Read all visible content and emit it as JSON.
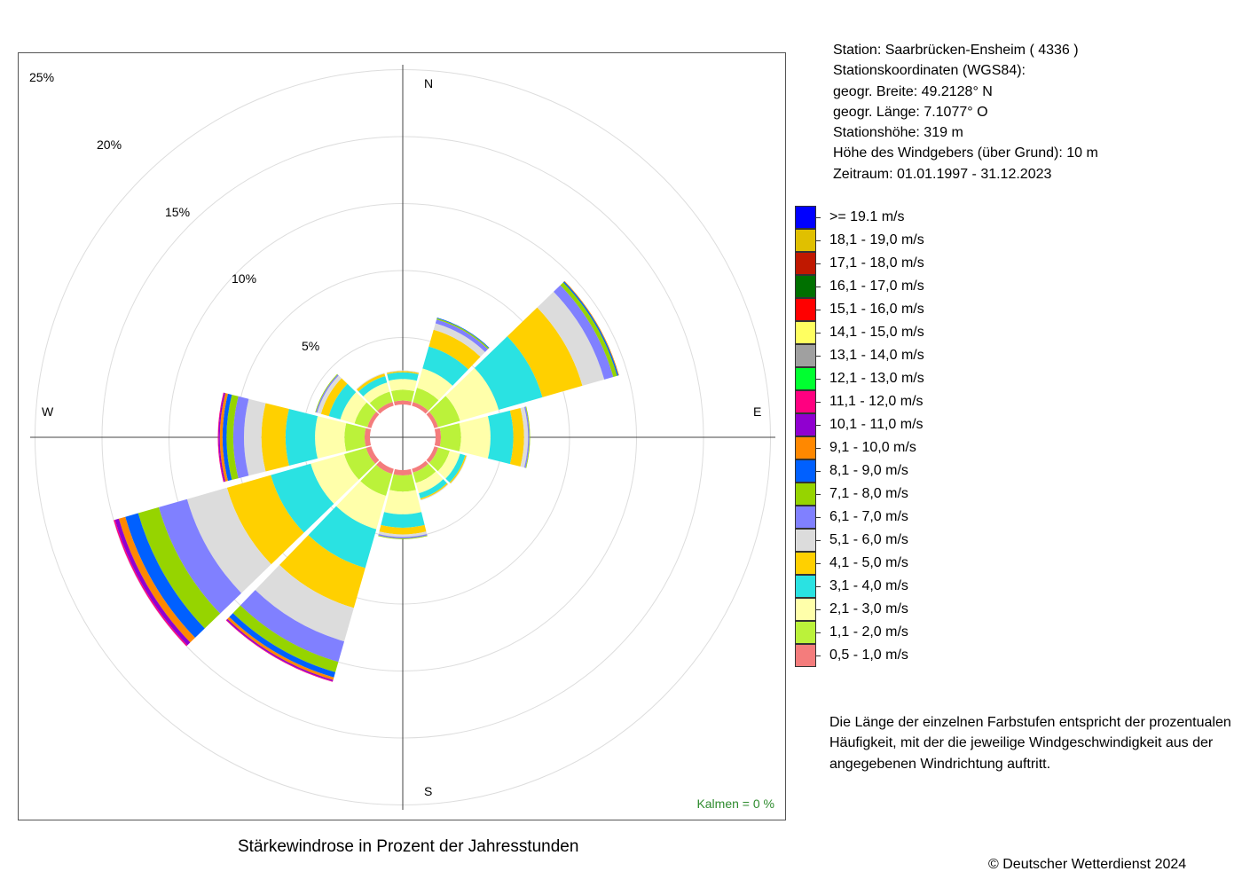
{
  "station": {
    "name_line": "Station:  Saarbrücken-Ensheim  ( 4336 )",
    "coords_heading": "Stationskoordinaten (WGS84):",
    "lat_line": "geogr. Breite: 49.2128° N",
    "lon_line": "geogr. Länge:   7.1077° O",
    "height_line": "Stationshöhe: 319 m",
    "anemometer_line": "Höhe des Windgebers (über Grund): 10 m",
    "period_line": "Zeitraum: 01.01.1997 - 31.12.2023"
  },
  "note": "Die Länge der einzelnen Farbstufen entspricht der prozentualen Häufigkeit, mit der die jeweilige Windgeschwindigkeit aus der angegebenen Windrichtung auftritt.",
  "copyright": "© Deutscher Wetterdienst  2024",
  "chart_data": {
    "type": "polar-bar",
    "title": "Stärkewindrose in Prozent der Jahresstunden",
    "calm_label": "Kalmen  =  0 %",
    "directions": [
      "N",
      "E",
      "S",
      "W"
    ],
    "sector_angles_deg": [
      0,
      30,
      60,
      90,
      120,
      150,
      180,
      210,
      240,
      270,
      300,
      330
    ],
    "radial_ticks": [
      "5%",
      "10%",
      "15%",
      "20%",
      "25%"
    ],
    "radial_tick_values": [
      5,
      10,
      15,
      20,
      25
    ],
    "classes": [
      {
        "label": "0,5 - 1,0 m/s",
        "color": "#f47c7c"
      },
      {
        "label": "1,1 - 2,0 m/s",
        "color": "#bbf23a"
      },
      {
        "label": "2,1 - 3,0 m/s",
        "color": "#ffffaa"
      },
      {
        "label": "3,1 - 4,0 m/s",
        "color": "#2ae2e2"
      },
      {
        "label": "4,1 - 5,0 m/s",
        "color": "#ffd000"
      },
      {
        "label": "5,1 - 6,0 m/s",
        "color": "#dcdcdc"
      },
      {
        "label": "6,1 - 7,0 m/s",
        "color": "#8080ff"
      },
      {
        "label": "7,1 - 8,0 m/s",
        "color": "#96d400"
      },
      {
        "label": "8,1 - 9,0 m/s",
        "color": "#0060ff"
      },
      {
        "label": "9,1 - 10,0 m/s",
        "color": "#ff8800"
      },
      {
        "label": "10,1 - 11,0 m/s",
        "color": "#9000d0"
      },
      {
        "label": "11,1 - 12,0 m/s",
        "color": "#ff0080"
      },
      {
        "label": "12,1 - 13,0 m/s",
        "color": "#00ff30"
      },
      {
        "label": "13,1 - 14,0 m/s",
        "color": "#a0a0a0"
      },
      {
        "label": "14,1 - 15,0 m/s",
        "color": "#ffff60"
      },
      {
        "label": "15,1 - 16,0 m/s",
        "color": "#ff0000"
      },
      {
        "label": "16,1 - 17,0 m/s",
        "color": "#007000"
      },
      {
        "label": "17,1 - 18,0 m/s",
        "color": "#c01800"
      },
      {
        "label": "18,1 - 19,0 m/s",
        "color": "#e0c000"
      },
      {
        "label": ">= 19.1 m/s",
        "color": "#0000ff"
      }
    ],
    "legend_order": [
      ">= 19.1 m/s",
      "18,1 - 19,0 m/s",
      "17,1 - 18,0 m/s",
      "16,1 - 17,0 m/s",
      "15,1 - 16,0 m/s",
      "14,1 - 15,0 m/s",
      "13,1 - 14,0 m/s",
      "12,1 - 13,0 m/s",
      "11,1 - 12,0 m/s",
      "10,1 - 11,0 m/s",
      "9,1 - 10,0 m/s",
      "8,1 - 9,0 m/s",
      "7,1 - 8,0 m/s",
      "6,1 - 7,0 m/s",
      "5,1 - 6,0 m/s",
      "4,1 - 5,0 m/s",
      "3,1 - 4,0 m/s",
      "2,1 - 3,0 m/s",
      "1,1 - 2,0 m/s",
      "0,5 - 1,0 m/s"
    ],
    "series": [
      {
        "direction_deg": 0,
        "values": [
          0.3,
          0.8,
          0.8,
          0.5,
          0.1,
          0.05,
          0.0,
          0.0,
          0.0,
          0.0,
          0.0,
          0.0,
          0,
          0,
          0,
          0,
          0,
          0,
          0,
          0
        ]
      },
      {
        "direction_deg": 30,
        "values": [
          0.3,
          1.1,
          1.5,
          1.7,
          1.3,
          0.5,
          0.3,
          0.1,
          0.05,
          0.0,
          0.0,
          0.0,
          0,
          0,
          0,
          0,
          0,
          0,
          0,
          0
        ]
      },
      {
        "direction_deg": 60,
        "values": [
          0.3,
          1.7,
          3.0,
          3.4,
          3.1,
          1.7,
          0.7,
          0.3,
          0.1,
          0.05,
          0.0,
          0.0,
          0,
          0,
          0,
          0,
          0,
          0,
          0,
          0
        ]
      },
      {
        "direction_deg": 90,
        "values": [
          0.4,
          1.5,
          2.2,
          1.7,
          0.8,
          0.3,
          0.1,
          0.05,
          0.0,
          0.0,
          0.0,
          0.0,
          0,
          0,
          0,
          0,
          0,
          0,
          0,
          0
        ]
      },
      {
        "direction_deg": 120,
        "values": [
          0.3,
          0.9,
          0.8,
          0.4,
          0.1,
          0.05,
          0.0,
          0.0,
          0.0,
          0.0,
          0.0,
          0.0,
          0,
          0,
          0,
          0,
          0,
          0,
          0,
          0
        ]
      },
      {
        "direction_deg": 150,
        "values": [
          0.3,
          0.8,
          0.8,
          0.4,
          0.1,
          0.05,
          0.0,
          0.0,
          0.0,
          0.0,
          0.0,
          0.0,
          0,
          0,
          0,
          0,
          0,
          0,
          0,
          0
        ]
      },
      {
        "direction_deg": 180,
        "values": [
          0.4,
          1.2,
          1.7,
          1.0,
          0.5,
          0.2,
          0.1,
          0.05,
          0.0,
          0.0,
          0.0,
          0.0,
          0,
          0,
          0,
          0,
          0,
          0,
          0,
          0
        ]
      },
      {
        "direction_deg": 210,
        "values": [
          0.4,
          1.7,
          2.6,
          3.0,
          3.1,
          2.6,
          1.6,
          0.8,
          0.4,
          0.2,
          0.1,
          0.05,
          0,
          0,
          0,
          0,
          0,
          0,
          0,
          0
        ]
      },
      {
        "direction_deg": 240,
        "values": [
          0.4,
          1.7,
          2.6,
          3.1,
          3.4,
          3.1,
          2.2,
          1.6,
          1.0,
          0.5,
          0.3,
          0.1,
          0,
          0,
          0,
          0,
          0,
          0,
          0,
          0
        ]
      },
      {
        "direction_deg": 270,
        "values": [
          0.4,
          1.5,
          2.2,
          2.2,
          1.8,
          1.3,
          0.8,
          0.5,
          0.3,
          0.2,
          0.1,
          0.05,
          0,
          0,
          0,
          0,
          0,
          0,
          0,
          0
        ]
      },
      {
        "direction_deg": 300,
        "values": [
          0.3,
          1.0,
          1.1,
          0.9,
          0.6,
          0.3,
          0.1,
          0.05,
          0.0,
          0.0,
          0.0,
          0.0,
          0,
          0,
          0,
          0,
          0,
          0,
          0,
          0
        ]
      },
      {
        "direction_deg": 330,
        "values": [
          0.3,
          0.8,
          0.7,
          0.5,
          0.2,
          0.05,
          0.0,
          0.0,
          0.0,
          0.0,
          0.0,
          0.0,
          0,
          0,
          0,
          0,
          0,
          0,
          0,
          0
        ]
      }
    ]
  }
}
